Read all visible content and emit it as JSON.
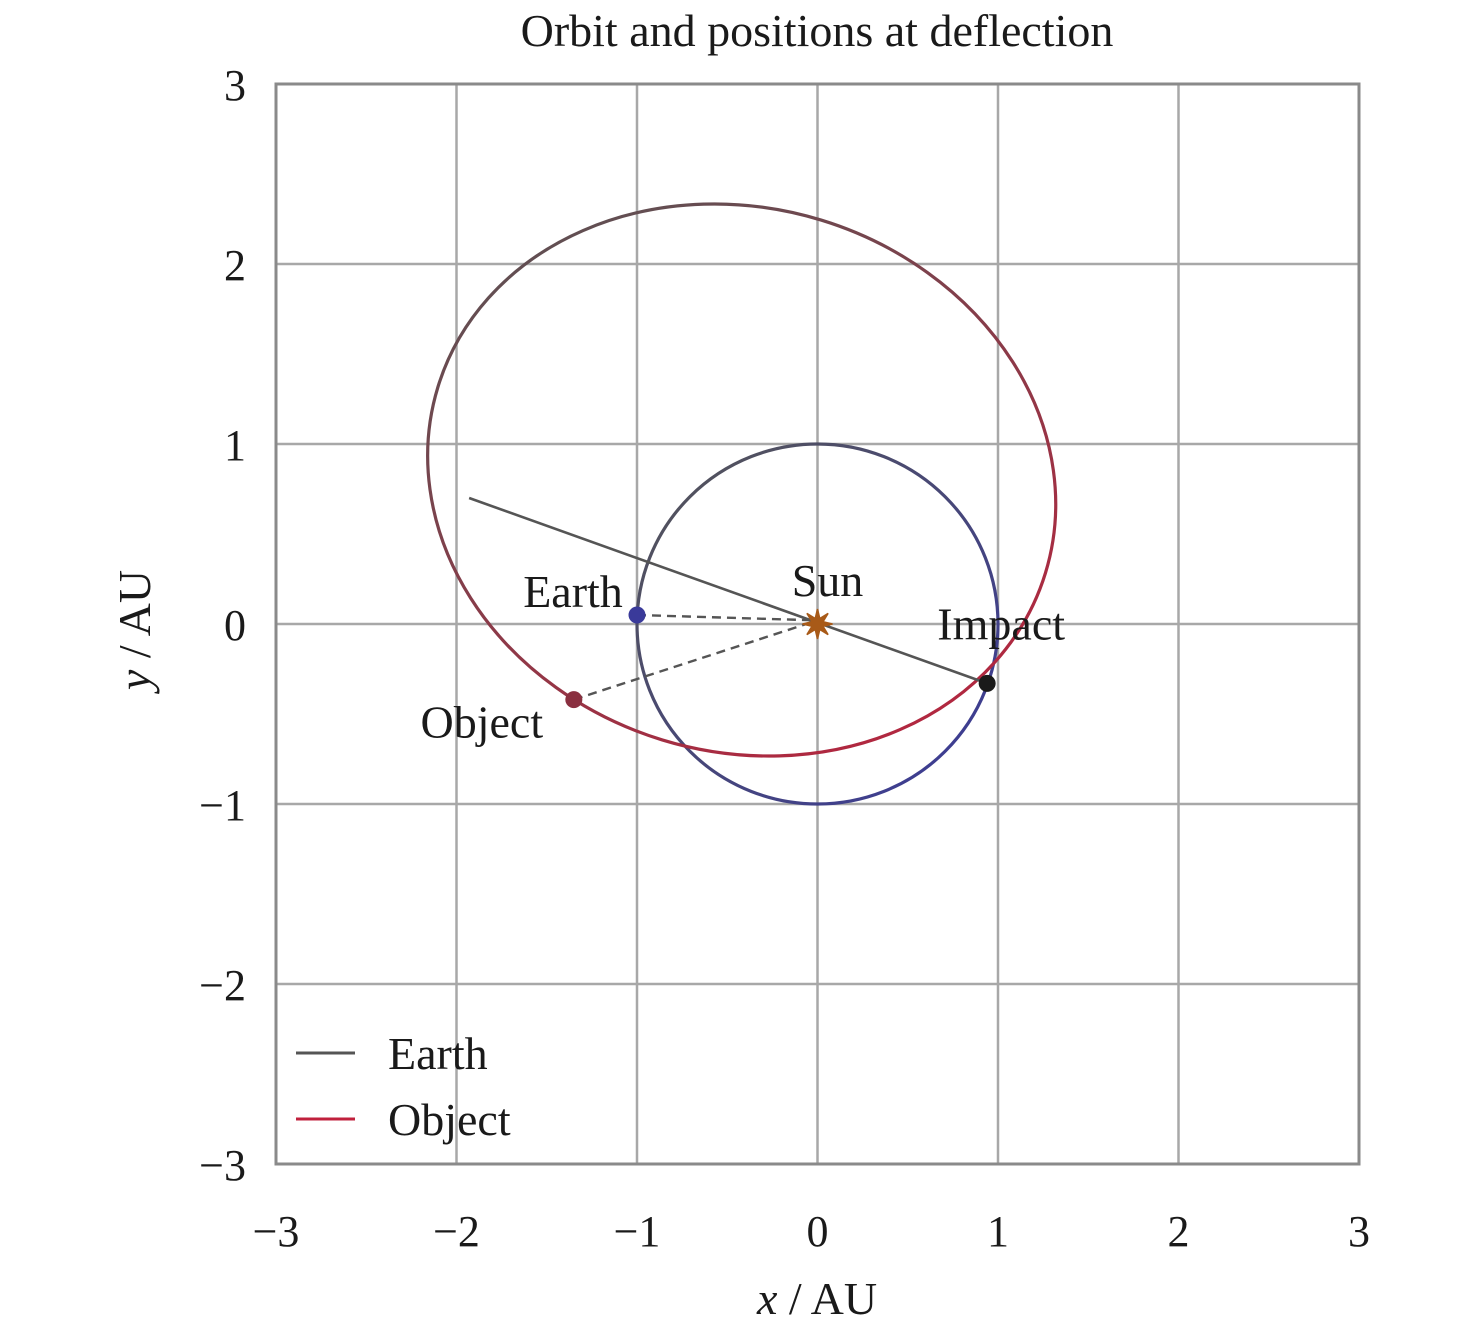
{
  "chart_data": {
    "type": "line",
    "title": "Orbit and positions at deflection",
    "xlabel_var": "x",
    "xlabel_unit": " / AU",
    "ylabel_var": "y",
    "ylabel_unit": " / AU",
    "xlim": [
      -3,
      3
    ],
    "ylim": [
      -3,
      3
    ],
    "xticks": [
      -3,
      -2,
      -1,
      0,
      1,
      2,
      3
    ],
    "yticks": [
      -3,
      -2,
      -1,
      0,
      1,
      2,
      3
    ],
    "xtick_labels": [
      "−3",
      "−2",
      "−1",
      "0",
      "1",
      "2",
      "3"
    ],
    "ytick_labels": [
      "−3",
      "−2",
      "−1",
      "0",
      "1",
      "2",
      "3"
    ],
    "grid": true,
    "legend": {
      "placement": "lower-left",
      "entries": [
        "Earth",
        "Object"
      ]
    },
    "colors": {
      "earth_start": "#555555",
      "earth_end": "#3a3a9a",
      "object_start": "#555555",
      "object_end": "#c0203c",
      "sun": "#a85a18",
      "impact": "#1a1a1a",
      "connector": "#555555"
    },
    "series": [
      {
        "name": "Earth",
        "kind": "circle",
        "center": [
          0,
          0
        ],
        "radius": 1.0
      },
      {
        "name": "Object",
        "kind": "ellipse",
        "center": [
          -0.42,
          0.8
        ],
        "semi_major": 1.76,
        "semi_minor": 1.51,
        "rotation_deg": -17
      }
    ],
    "points": [
      {
        "name": "Sun",
        "x": 0.0,
        "y": 0.0,
        "marker": "star",
        "label": "Sun",
        "label_pos": "above"
      },
      {
        "name": "Earth",
        "x": -1.0,
        "y": 0.05,
        "marker": "dot",
        "label": "Earth",
        "label_pos": "above-left"
      },
      {
        "name": "Object",
        "x": -1.35,
        "y": -0.42,
        "marker": "dot",
        "label": "Object",
        "label_pos": "below-left"
      },
      {
        "name": "Impact",
        "x": 0.94,
        "y": -0.33,
        "marker": "dot",
        "label": "Impact",
        "label_pos": "above"
      }
    ],
    "lines": [
      {
        "name": "apsis-line",
        "x": [
          -1.93,
          0.94
        ],
        "y": [
          0.7,
          -0.33
        ],
        "style": "solid"
      },
      {
        "name": "earth-sun-line",
        "x": [
          -1.0,
          0.0
        ],
        "y": [
          0.05,
          0.02
        ],
        "style": "dashed"
      },
      {
        "name": "object-sun-line",
        "x": [
          -1.35,
          0.0
        ],
        "y": [
          -0.42,
          0.02
        ],
        "style": "dashed"
      }
    ]
  }
}
